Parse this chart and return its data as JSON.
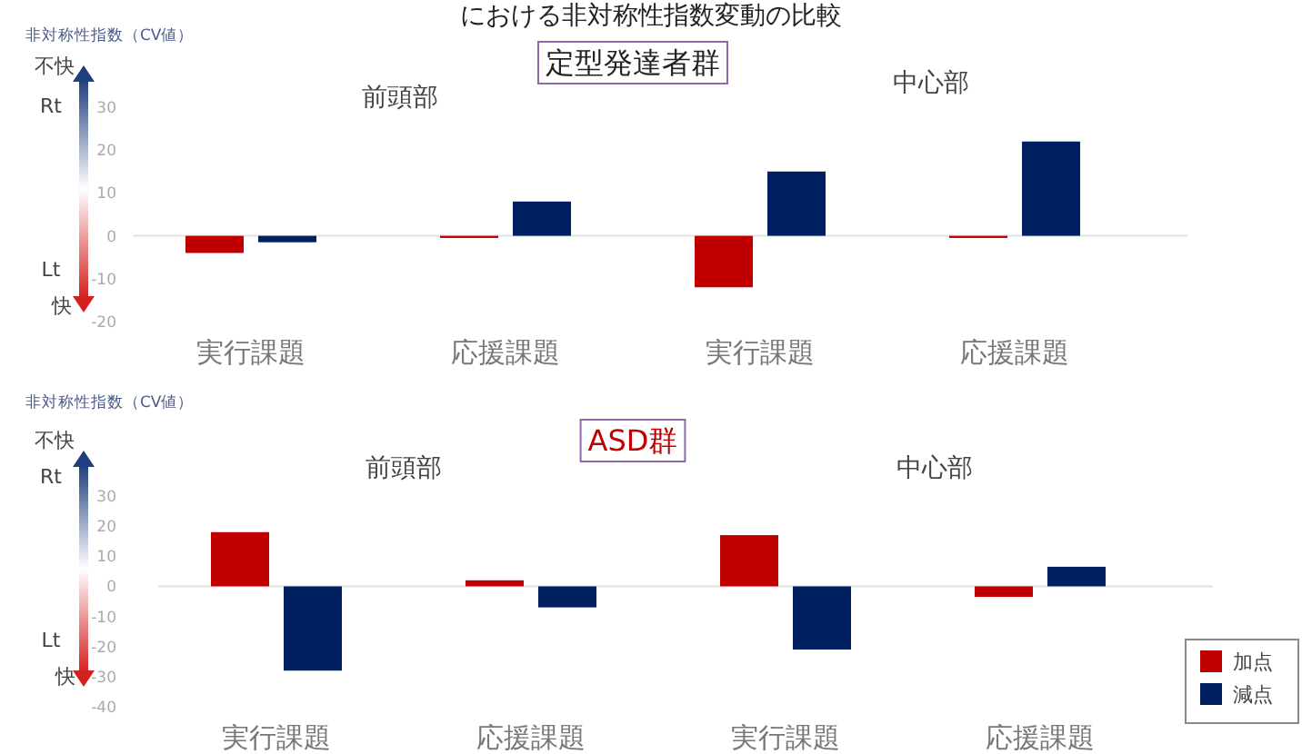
{
  "chart_data": [
    {
      "type": "bar",
      "title": "における非対称性指数変動の比較",
      "subtitle": "定型発達者群",
      "ylabel": "非対称性指数（CV値）",
      "categories": [
        "実行課題",
        "応援課題",
        "実行課題",
        "応援課題"
      ],
      "series": [
        {
          "color": "#c00000",
          "values": [
            -4,
            -0.5,
            -12,
            -0.5
          ]
        },
        {
          "color": "#002060",
          "values": [
            -1.5,
            8,
            15,
            22
          ]
        }
      ],
      "ylim": [
        -20,
        30
      ],
      "yticks": [
        -20,
        -10,
        0,
        10,
        20,
        30
      ],
      "annotations": [
        "前頭部",
        "中心部",
        "不快",
        "Rt",
        "Lt",
        "快"
      ]
    },
    {
      "type": "bar",
      "subtitle": "ASD群",
      "ylabel": "非対称性指数（CV値）",
      "categories": [
        "実行課題",
        "応援課題",
        "実行課題",
        "応援課題"
      ],
      "series": [
        {
          "name": "加点",
          "color": "#c00000",
          "values": [
            18,
            2,
            17,
            -3.5
          ]
        },
        {
          "name": "減点",
          "color": "#002060",
          "values": [
            -28,
            -7,
            -21,
            6.5
          ]
        }
      ],
      "ylim": [
        -40,
        30
      ],
      "yticks": [
        -40,
        -30,
        -20,
        -10,
        0,
        10,
        20,
        30
      ],
      "legend": "bottom right",
      "annotations": [
        "前頭部",
        "中心部",
        "不快",
        "Rt",
        "Lt",
        "快"
      ]
    }
  ]
}
